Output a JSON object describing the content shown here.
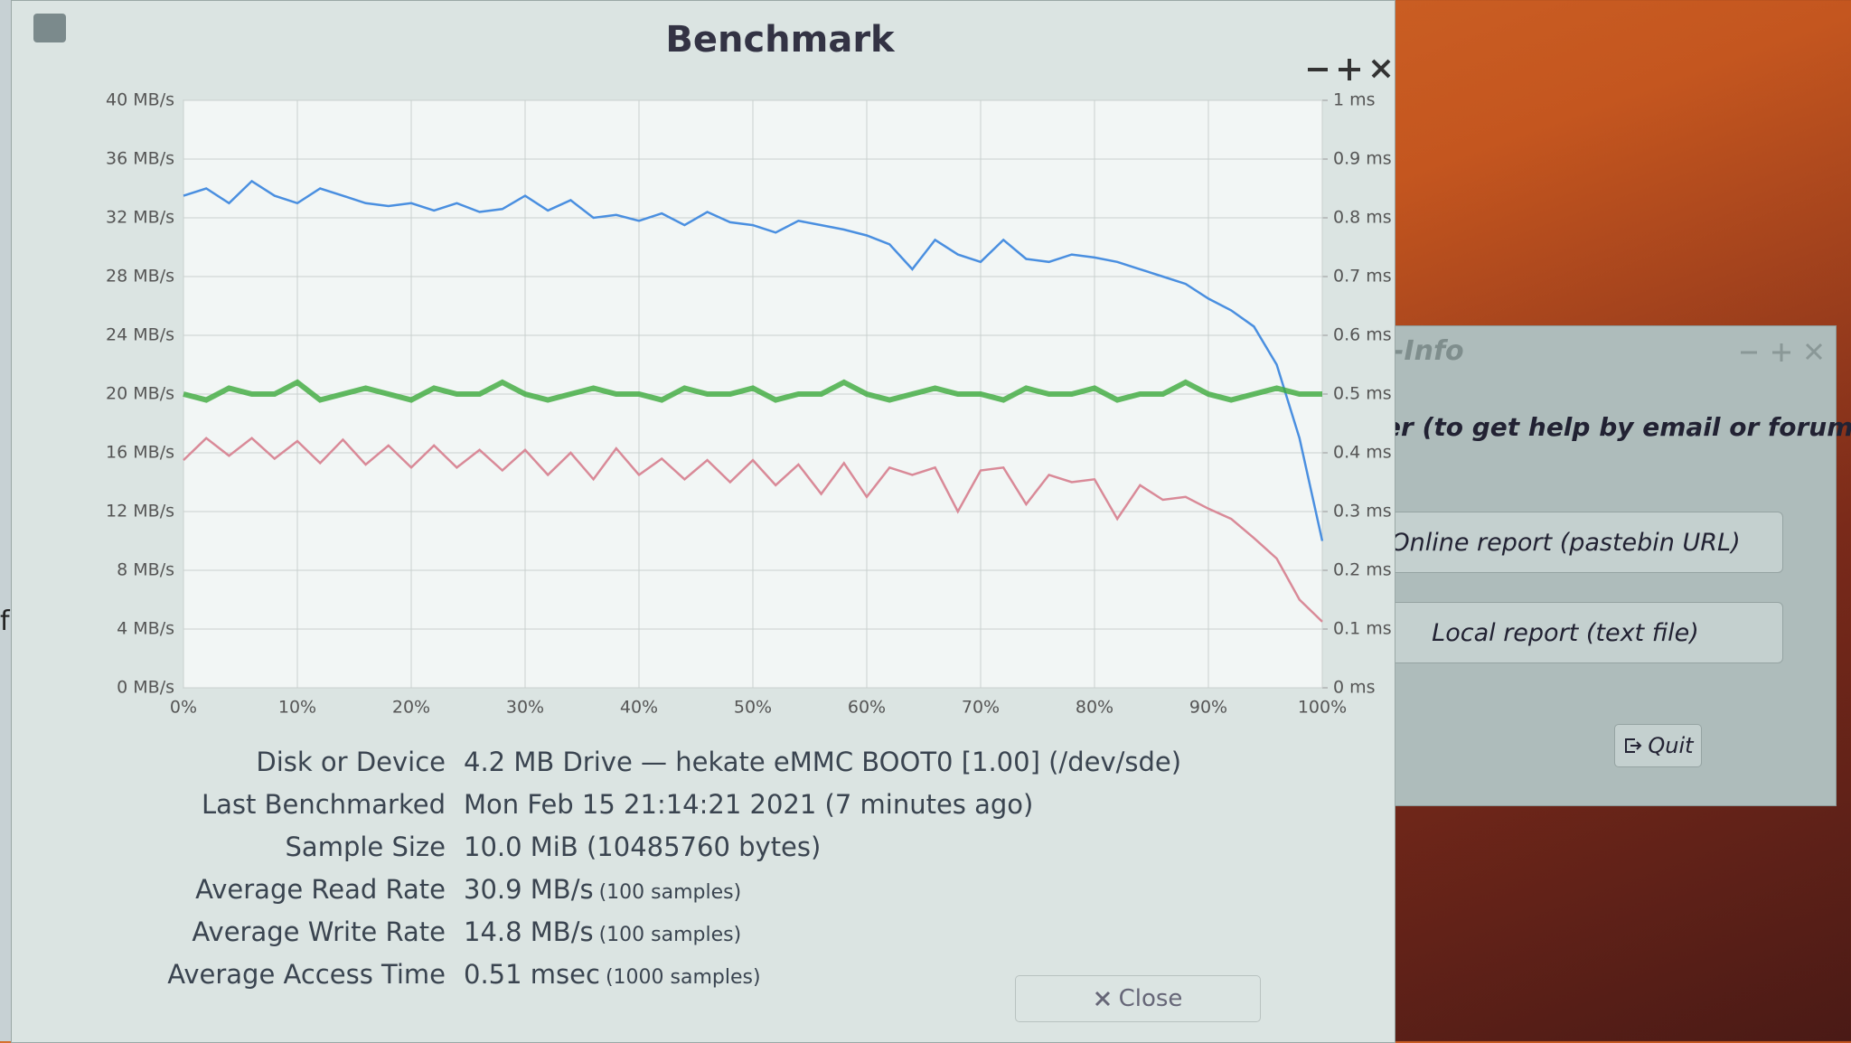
{
  "window": {
    "title": "Benchmark",
    "close_button": "Close"
  },
  "chart_data": {
    "type": "line",
    "x": [
      0,
      2,
      4,
      6,
      8,
      10,
      12,
      14,
      16,
      18,
      20,
      22,
      24,
      26,
      28,
      30,
      32,
      34,
      36,
      38,
      40,
      42,
      44,
      46,
      48,
      50,
      52,
      54,
      56,
      58,
      60,
      62,
      64,
      66,
      68,
      70,
      72,
      74,
      76,
      78,
      80,
      82,
      84,
      86,
      88,
      90,
      92,
      94,
      96,
      98,
      100
    ],
    "series": [
      {
        "color": "#4a8fe0",
        "values": [
          33.5,
          34,
          33,
          34.5,
          33.5,
          33,
          34,
          33.5,
          33,
          32.8,
          33,
          32.5,
          33,
          32.4,
          32.6,
          33.5,
          32.5,
          33.2,
          32,
          32.2,
          31.8,
          32.3,
          31.5,
          32.4,
          31.7,
          31.5,
          31,
          31.8,
          31.5,
          31.2,
          30.8,
          30.2,
          28.5,
          30.5,
          29.5,
          29,
          30.5,
          29.2,
          29,
          29.5,
          29.3,
          29,
          28.5,
          28,
          27.5,
          26.5,
          25.7,
          24.6,
          22,
          17,
          10
        ]
      },
      {
        "color": "#d98a98",
        "values": [
          15.5,
          17,
          15.8,
          17,
          15.6,
          16.8,
          15.3,
          16.9,
          15.2,
          16.5,
          15,
          16.5,
          15,
          16.2,
          14.8,
          16.2,
          14.5,
          16,
          14.2,
          16.3,
          14.5,
          15.6,
          14.2,
          15.5,
          14,
          15.5,
          13.8,
          15.2,
          13.2,
          15.3,
          13,
          15,
          14.5,
          15,
          12,
          14.8,
          15,
          12.5,
          14.5,
          14,
          14.2,
          11.5,
          13.8,
          12.8,
          13,
          12.2,
          11.5,
          10.2,
          8.8,
          6,
          4.5
        ]
      },
      {
        "color": "#3caa3c",
        "axis": "y2",
        "values": [
          0.5,
          0.49,
          0.51,
          0.5,
          0.5,
          0.52,
          0.49,
          0.5,
          0.51,
          0.5,
          0.49,
          0.51,
          0.5,
          0.5,
          0.52,
          0.5,
          0.49,
          0.5,
          0.51,
          0.5,
          0.5,
          0.49,
          0.51,
          0.5,
          0.5,
          0.51,
          0.49,
          0.5,
          0.5,
          0.52,
          0.5,
          0.49,
          0.5,
          0.51,
          0.5,
          0.5,
          0.49,
          0.51,
          0.5,
          0.5,
          0.51,
          0.49,
          0.5,
          0.5,
          0.52,
          0.5,
          0.49,
          0.5,
          0.51,
          0.5,
          0.5
        ]
      }
    ],
    "xlim": [
      0,
      100
    ],
    "xticks": [
      {
        "value": 0,
        "label": "0%"
      },
      {
        "value": 10,
        "label": "10%"
      },
      {
        "value": 20,
        "label": "20%"
      },
      {
        "value": 30,
        "label": "30%"
      },
      {
        "value": 40,
        "label": "40%"
      },
      {
        "value": 50,
        "label": "50%"
      },
      {
        "value": 60,
        "label": "60%"
      },
      {
        "value": 70,
        "label": "70%"
      },
      {
        "value": 80,
        "label": "80%"
      },
      {
        "value": 90,
        "label": "90%"
      },
      {
        "value": 100,
        "label": "100%"
      }
    ],
    "ylim": [
      0,
      40
    ],
    "yticks": [
      {
        "value": 0,
        "label": "0 MB/s"
      },
      {
        "value": 4,
        "label": "4 MB/s"
      },
      {
        "value": 8,
        "label": "8 MB/s"
      },
      {
        "value": 12,
        "label": "12 MB/s"
      },
      {
        "value": 16,
        "label": "16 MB/s"
      },
      {
        "value": 20,
        "label": "20 MB/s"
      },
      {
        "value": 24,
        "label": "24 MB/s"
      },
      {
        "value": 28,
        "label": "28 MB/s"
      },
      {
        "value": 32,
        "label": "32 MB/s"
      },
      {
        "value": 36,
        "label": "36 MB/s"
      },
      {
        "value": 40,
        "label": "40 MB/s"
      }
    ],
    "y2lim": [
      0,
      1
    ],
    "y2ticks": [
      {
        "value": 0,
        "label": "0 ms"
      },
      {
        "value": 0.1,
        "label": "0.1 ms"
      },
      {
        "value": 0.2,
        "label": "0.2 ms"
      },
      {
        "value": 0.3,
        "label": "0.3 ms"
      },
      {
        "value": 0.4,
        "label": "0.4 ms"
      },
      {
        "value": 0.5,
        "label": "0.5 ms"
      },
      {
        "value": 0.6,
        "label": "0.6 ms"
      },
      {
        "value": 0.7,
        "label": "0.7 ms"
      },
      {
        "value": 0.8,
        "label": "0.8 ms"
      },
      {
        "value": 0.9,
        "label": "0.9 ms"
      },
      {
        "value": 1,
        "label": "1 ms"
      }
    ],
    "grid": true
  },
  "info": [
    {
      "label": "Disk or Device",
      "value": "4.2 MB Drive — hekate eMMC BOOT0 [1.00] (/dev/sde)"
    },
    {
      "label": "Last Benchmarked",
      "value": "Mon Feb 15 21:14:21 2021 (7 minutes ago)"
    },
    {
      "label": "Sample Size",
      "value": "10.0 MiB (10485760 bytes)"
    },
    {
      "label": "Average Read Rate",
      "value": "30.9 MB/s",
      "note": "(100 samples)"
    },
    {
      "label": "Average Write Rate",
      "value": "14.8 MB/s",
      "note": "(100 samples)"
    },
    {
      "label": "Average Access Time",
      "value": "0.51 msec",
      "note": "(1000 samples)"
    }
  ],
  "side_window": {
    "title": "-Info",
    "text": "er (to get help by email or forum)",
    "buttons": [
      "Online report (pastebin URL)",
      "Local report (text file)"
    ],
    "quit": "Quit"
  },
  "background": {
    "text": "fs"
  }
}
